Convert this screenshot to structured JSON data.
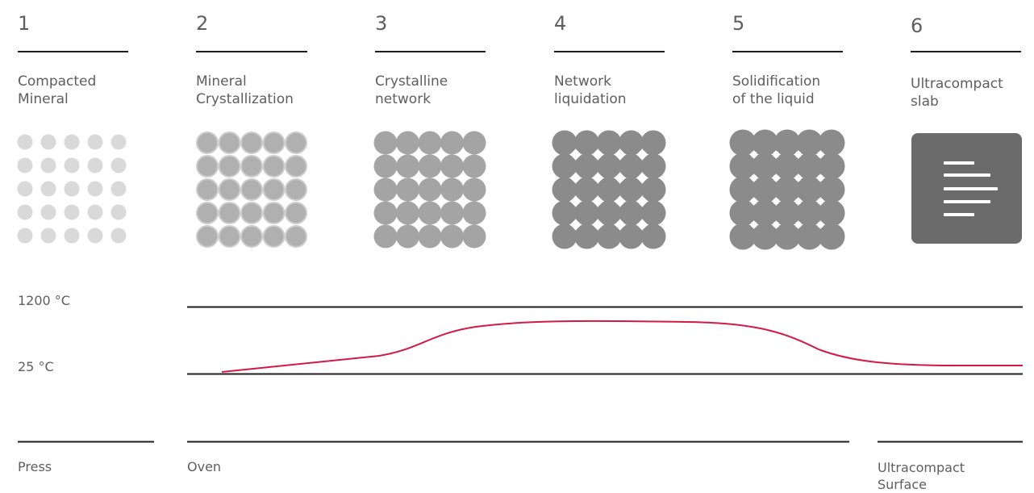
{
  "steps": [
    {
      "number": "1",
      "label": "Compacted\nMineral"
    },
    {
      "number": "2",
      "label": "Mineral\nCrystallization"
    },
    {
      "number": "3",
      "label": "Crystalline\nnetwork"
    },
    {
      "number": "4",
      "label": "Network\nliquidation"
    },
    {
      "number": "5",
      "label": "Solidification\nof the liquid"
    },
    {
      "number": "6",
      "label": "Ultracompact\nslab"
    }
  ],
  "temperature": {
    "high_label": "1200 °C",
    "low_label": "25 °C"
  },
  "stages": [
    {
      "label": "Press"
    },
    {
      "label": "Oven"
    },
    {
      "label": "Ultracompact\nSurface"
    }
  ],
  "colors": {
    "curve": "#d21947",
    "dots_light": "#d9d9d9",
    "dots_mid": "#b0b0b0",
    "dots_dark": "#a4a4a4",
    "network": "#8b8b8b",
    "slab": "#6b6b6b",
    "rule": "#1e1e1e"
  },
  "icons": {
    "slab": "text-lines-icon"
  }
}
